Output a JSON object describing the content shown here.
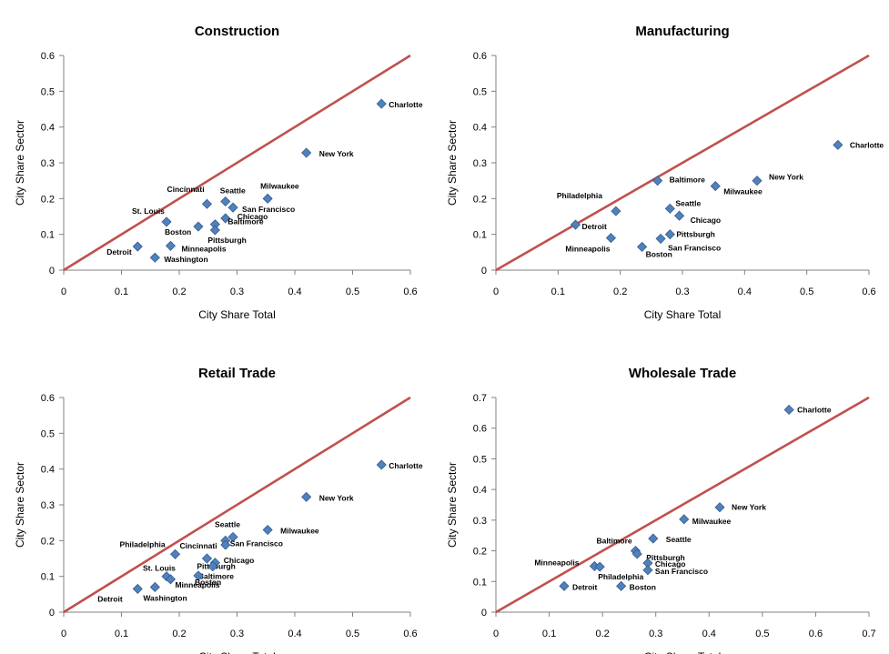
{
  "colors": {
    "marker": "#4f81bd",
    "marker_edge": "#385d8a",
    "reference_line": "#c0504d",
    "axis": "#808080"
  },
  "chart_data": [
    {
      "type": "scatter",
      "title": "Construction",
      "xlabel": "City Share Total",
      "ylabel": "City Share Sector",
      "xlim": [
        0,
        0.6
      ],
      "ylim": [
        0,
        0.6
      ],
      "xticks": [
        "0",
        "0.1",
        "0.2",
        "0.3",
        "0.4",
        "0.5",
        "0.6"
      ],
      "yticks": [
        "0",
        "0.1",
        "0.2",
        "0.3",
        "0.4",
        "0.5",
        "0.6"
      ],
      "reference_line": "y = x",
      "grid": false,
      "legend": "none",
      "points": [
        {
          "label": "Charlotte",
          "x": 0.55,
          "y": 0.465
        },
        {
          "label": "New York",
          "x": 0.42,
          "y": 0.328
        },
        {
          "label": "Milwaukee",
          "x": 0.353,
          "y": 0.2
        },
        {
          "label": "Cincinnati",
          "x": 0.248,
          "y": 0.185
        },
        {
          "label": "Seattle",
          "x": 0.28,
          "y": 0.192
        },
        {
          "label": "San Francisco",
          "x": 0.293,
          "y": 0.175
        },
        {
          "label": "Chicago",
          "x": 0.28,
          "y": 0.145
        },
        {
          "label": "Baltimore",
          "x": 0.262,
          "y": 0.128
        },
        {
          "label": "Pittsburgh",
          "x": 0.262,
          "y": 0.112
        },
        {
          "label": "Boston",
          "x": 0.233,
          "y": 0.122
        },
        {
          "label": "St. Louis",
          "x": 0.178,
          "y": 0.135
        },
        {
          "label": "Minneapolis",
          "x": 0.185,
          "y": 0.068
        },
        {
          "label": "Detroit",
          "x": 0.128,
          "y": 0.066
        },
        {
          "label": "Washington",
          "x": 0.158,
          "y": 0.035
        }
      ]
    },
    {
      "type": "scatter",
      "title": "Manufacturing",
      "xlabel": "City Share Total",
      "ylabel": "City Share Sector",
      "xlim": [
        0,
        0.6
      ],
      "ylim": [
        0,
        0.6
      ],
      "xticks": [
        "0",
        "0.1",
        "0.2",
        "0.3",
        "0.4",
        "0.5",
        "0.6"
      ],
      "yticks": [
        "0",
        "0.1",
        "0.2",
        "0.3",
        "0.4",
        "0.5",
        "0.6"
      ],
      "reference_line": "y = x",
      "grid": false,
      "legend": "none",
      "points": [
        {
          "label": "Charlotte",
          "x": 0.55,
          "y": 0.35
        },
        {
          "label": "New York",
          "x": 0.42,
          "y": 0.25
        },
        {
          "label": "Baltimore",
          "x": 0.26,
          "y": 0.25
        },
        {
          "label": "Milwaukee",
          "x": 0.353,
          "y": 0.235
        },
        {
          "label": "Philadelphia",
          "x": 0.193,
          "y": 0.165
        },
        {
          "label": "Seattle",
          "x": 0.28,
          "y": 0.172
        },
        {
          "label": "Chicago",
          "x": 0.295,
          "y": 0.152
        },
        {
          "label": "Detroit",
          "x": 0.128,
          "y": 0.127
        },
        {
          "label": "Minneapolis",
          "x": 0.185,
          "y": 0.09
        },
        {
          "label": "Pittsburgh",
          "x": 0.28,
          "y": 0.1
        },
        {
          "label": "San Francisco",
          "x": 0.265,
          "y": 0.088
        },
        {
          "label": "Boston",
          "x": 0.235,
          "y": 0.065
        }
      ]
    },
    {
      "type": "scatter",
      "title": "Retail Trade",
      "xlabel": "City Share Total",
      "ylabel": "City Share Sector",
      "xlim": [
        0,
        0.6
      ],
      "ylim": [
        0,
        0.6
      ],
      "xticks": [
        "0",
        "0.1",
        "0.2",
        "0.3",
        "0.4",
        "0.5",
        "0.6"
      ],
      "yticks": [
        "0",
        "0.1",
        "0.2",
        "0.3",
        "0.4",
        "0.5",
        "0.6"
      ],
      "reference_line": "y = x",
      "grid": false,
      "legend": "none",
      "points": [
        {
          "label": "Charlotte",
          "x": 0.55,
          "y": 0.412
        },
        {
          "label": "New York",
          "x": 0.42,
          "y": 0.322
        },
        {
          "label": "Milwaukee",
          "x": 0.353,
          "y": 0.23
        },
        {
          "label": "Seattle",
          "x": 0.293,
          "y": 0.21
        },
        {
          "label": "San Francisco",
          "x": 0.28,
          "y": 0.2
        },
        {
          "label": "Philadelphia",
          "x": 0.193,
          "y": 0.162
        },
        {
          "label": "Cincinnati",
          "x": 0.248,
          "y": 0.15
        },
        {
          "label": "Chicago",
          "x": 0.28,
          "y": 0.188
        },
        {
          "label": "Pittsburgh",
          "x": 0.262,
          "y": 0.138
        },
        {
          "label": "Baltimore",
          "x": 0.258,
          "y": 0.128
        },
        {
          "label": "St. Louis",
          "x": 0.178,
          "y": 0.1
        },
        {
          "label": "Boston",
          "x": 0.233,
          "y": 0.102
        },
        {
          "label": "Minneapolis",
          "x": 0.185,
          "y": 0.092
        },
        {
          "label": "Detroit",
          "x": 0.128,
          "y": 0.065
        },
        {
          "label": "Washington",
          "x": 0.158,
          "y": 0.07
        }
      ]
    },
    {
      "type": "scatter",
      "title": "Wholesale Trade",
      "xlabel": "City Share Total",
      "ylabel": "City Share Sector",
      "xlim": [
        0,
        0.7
      ],
      "ylim": [
        0,
        0.7
      ],
      "xticks": [
        "0",
        "0.1",
        "0.2",
        "0.3",
        "0.4",
        "0.5",
        "0.6",
        "0.7"
      ],
      "yticks": [
        "0",
        "0.1",
        "0.2",
        "0.3",
        "0.4",
        "0.5",
        "0.6",
        "0.7"
      ],
      "reference_line": "y = x",
      "grid": false,
      "legend": "none",
      "points": [
        {
          "label": "Charlotte",
          "x": 0.55,
          "y": 0.66
        },
        {
          "label": "New York",
          "x": 0.42,
          "y": 0.342
        },
        {
          "label": "Milwaukee",
          "x": 0.353,
          "y": 0.303
        },
        {
          "label": "Seattle",
          "x": 0.295,
          "y": 0.24
        },
        {
          "label": "Baltimore",
          "x": 0.262,
          "y": 0.2
        },
        {
          "label": "Pittsburgh",
          "x": 0.265,
          "y": 0.19
        },
        {
          "label": "Chicago",
          "x": 0.285,
          "y": 0.16
        },
        {
          "label": "San Francisco",
          "x": 0.285,
          "y": 0.137
        },
        {
          "label": "Minneapolis",
          "x": 0.185,
          "y": 0.15
        },
        {
          "label": "Philadelphia",
          "x": 0.195,
          "y": 0.148
        },
        {
          "label": "Detroit",
          "x": 0.128,
          "y": 0.085
        },
        {
          "label": "Boston",
          "x": 0.235,
          "y": 0.085
        }
      ]
    }
  ]
}
